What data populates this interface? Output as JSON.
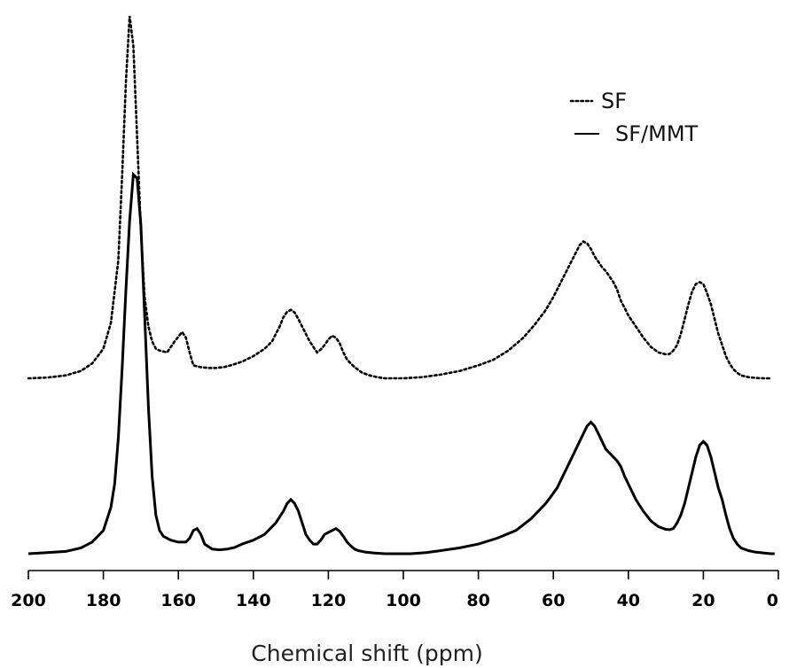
{
  "chart_data": {
    "type": "line",
    "title": "",
    "xlabel": "Chemical shift (ppm)",
    "ylabel": "",
    "xlim": [
      200,
      0
    ],
    "x_reversed": true,
    "x_ticks": [
      "200",
      "180",
      "160",
      "140",
      "120",
      "100",
      "80",
      "60",
      "40",
      "20",
      "0"
    ],
    "y_ticks_shown": false,
    "grid": false,
    "legend_position": "top-right",
    "series": [
      {
        "name": "SF",
        "line_style": "dotted",
        "color": "#000000",
        "x": [
          200,
          195,
          190,
          186,
          183,
          180,
          178,
          176,
          175,
          174,
          173,
          172,
          171,
          170,
          169,
          168,
          167,
          166,
          165,
          163,
          161,
          159,
          158,
          157,
          156,
          154,
          152,
          150,
          148,
          146,
          143,
          140,
          137,
          135,
          133,
          132,
          131,
          130,
          129,
          128,
          127,
          125,
          123,
          122,
          121,
          120,
          119,
          118,
          117,
          116,
          115,
          113,
          111,
          109,
          107,
          105,
          100,
          95,
          90,
          85,
          80,
          76,
          72,
          68,
          65,
          62,
          60,
          58,
          56,
          55,
          54,
          53,
          52,
          51,
          50,
          49,
          48,
          47,
          46,
          45,
          44,
          43,
          42,
          41,
          40,
          38,
          36,
          34,
          32,
          30,
          29,
          28,
          27,
          26,
          25,
          24,
          23,
          22,
          21,
          20,
          19,
          18,
          17,
          16,
          15,
          14,
          13,
          12,
          11,
          10,
          8,
          6,
          4,
          2
        ],
        "values": [
          0.0,
          0.002,
          0.008,
          0.02,
          0.04,
          0.08,
          0.15,
          0.32,
          0.55,
          0.8,
          0.98,
          0.9,
          0.65,
          0.4,
          0.22,
          0.14,
          0.1,
          0.08,
          0.075,
          0.07,
          0.1,
          0.125,
          0.11,
          0.07,
          0.035,
          0.03,
          0.028,
          0.028,
          0.03,
          0.035,
          0.045,
          0.06,
          0.08,
          0.1,
          0.14,
          0.165,
          0.18,
          0.185,
          0.178,
          0.16,
          0.14,
          0.1,
          0.07,
          0.078,
          0.09,
          0.105,
          0.115,
          0.11,
          0.095,
          0.07,
          0.05,
          0.03,
          0.015,
          0.008,
          0.003,
          0.0,
          0.0,
          0.003,
          0.01,
          0.02,
          0.035,
          0.05,
          0.075,
          0.11,
          0.145,
          0.185,
          0.22,
          0.26,
          0.3,
          0.32,
          0.34,
          0.36,
          0.37,
          0.365,
          0.35,
          0.33,
          0.315,
          0.3,
          0.29,
          0.275,
          0.26,
          0.24,
          0.21,
          0.19,
          0.17,
          0.14,
          0.11,
          0.085,
          0.07,
          0.065,
          0.066,
          0.075,
          0.09,
          0.12,
          0.16,
          0.2,
          0.235,
          0.255,
          0.26,
          0.255,
          0.23,
          0.2,
          0.16,
          0.12,
          0.09,
          0.06,
          0.04,
          0.025,
          0.015,
          0.008,
          0.003,
          0.001,
          0.0,
          0.0
        ]
      },
      {
        "name": "SF/MMT",
        "line_style": "solid",
        "color": "#000000",
        "x": [
          200,
          195,
          190,
          186,
          183,
          180,
          178,
          177,
          176,
          175,
          174,
          173,
          172,
          171,
          170,
          169,
          168,
          167,
          166,
          165,
          164,
          162,
          160,
          158,
          157,
          156,
          155,
          154,
          153,
          151,
          149,
          147,
          145,
          143,
          140,
          137,
          134,
          132,
          131,
          130,
          129,
          128,
          127,
          126,
          125,
          124,
          123,
          122,
          121,
          119,
          118,
          117,
          116,
          115,
          114,
          113,
          112,
          110,
          108,
          105,
          102,
          98,
          94,
          90,
          85,
          80,
          75,
          70,
          66,
          62,
          59,
          57,
          55,
          53,
          52,
          51,
          50,
          49,
          48,
          47,
          46,
          45,
          44,
          43,
          42,
          41,
          40,
          38,
          36,
          34,
          32,
          30,
          29,
          28,
          27,
          26,
          25,
          24,
          23,
          22,
          21,
          20,
          19,
          18,
          17,
          16,
          15,
          14,
          13,
          12,
          11,
          10,
          8,
          6,
          4,
          2,
          1
        ],
        "values": [
          0.0,
          0.003,
          0.006,
          0.015,
          0.03,
          0.06,
          0.12,
          0.18,
          0.3,
          0.48,
          0.68,
          0.86,
          0.98,
          0.97,
          0.85,
          0.62,
          0.38,
          0.2,
          0.1,
          0.06,
          0.045,
          0.035,
          0.03,
          0.03,
          0.04,
          0.06,
          0.065,
          0.05,
          0.025,
          0.012,
          0.01,
          0.012,
          0.016,
          0.025,
          0.035,
          0.05,
          0.08,
          0.11,
          0.13,
          0.14,
          0.13,
          0.11,
          0.08,
          0.05,
          0.035,
          0.025,
          0.025,
          0.035,
          0.05,
          0.06,
          0.065,
          0.058,
          0.045,
          0.03,
          0.02,
          0.012,
          0.008,
          0.004,
          0.002,
          0.0,
          0.0,
          0.0,
          0.003,
          0.008,
          0.015,
          0.025,
          0.04,
          0.06,
          0.09,
          0.13,
          0.17,
          0.21,
          0.25,
          0.29,
          0.31,
          0.33,
          0.34,
          0.33,
          0.31,
          0.29,
          0.27,
          0.26,
          0.25,
          0.24,
          0.225,
          0.2,
          0.18,
          0.14,
          0.11,
          0.085,
          0.07,
          0.063,
          0.062,
          0.065,
          0.08,
          0.1,
          0.13,
          0.17,
          0.21,
          0.25,
          0.28,
          0.29,
          0.28,
          0.25,
          0.21,
          0.17,
          0.14,
          0.1,
          0.065,
          0.04,
          0.025,
          0.015,
          0.008,
          0.004,
          0.002,
          0.0,
          0.0
        ]
      }
    ]
  }
}
